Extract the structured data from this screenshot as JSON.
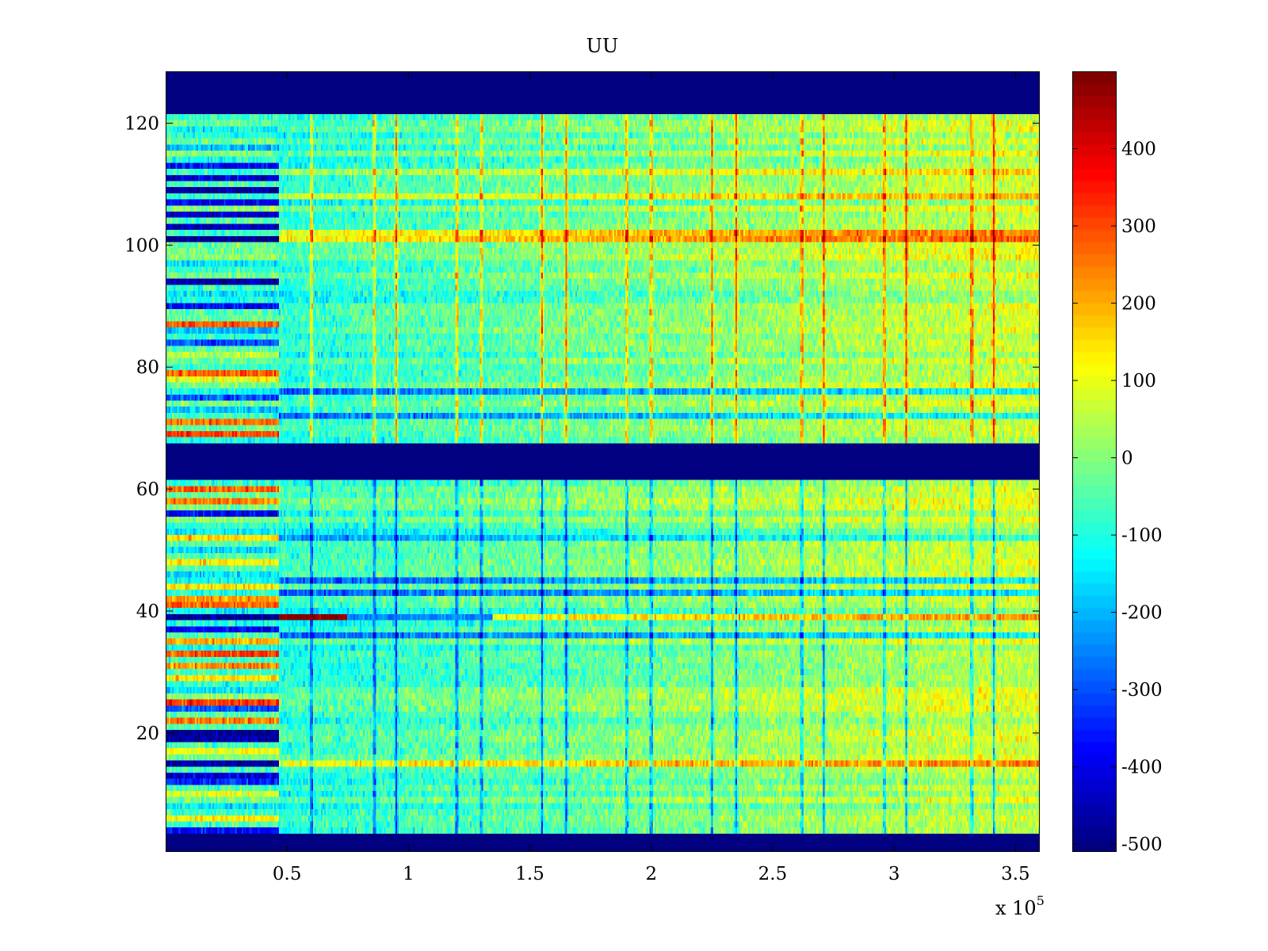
{
  "chart_data": {
    "type": "heatmap",
    "title": "UU",
    "xlabel": "",
    "ylabel": "",
    "x_multiplier_label": "x 10",
    "x_multiplier_exponent": "5",
    "xlim": [
      0,
      360000
    ],
    "ylim": [
      1,
      128
    ],
    "x_ticks": [
      50000,
      100000,
      150000,
      200000,
      250000,
      300000,
      350000
    ],
    "x_tick_labels": [
      "0.5",
      "1",
      "1.5",
      "2",
      "2.5",
      "3",
      "3.5"
    ],
    "y_ticks": [
      20,
      40,
      60,
      80,
      100,
      120
    ],
    "y_tick_labels": [
      "20",
      "40",
      "60",
      "80",
      "100",
      "120"
    ],
    "colormap": "jet",
    "clim": [
      -510,
      500
    ],
    "colorbar_ticks": [
      400,
      300,
      200,
      100,
      0,
      -100,
      -200,
      -300,
      -400,
      -500
    ],
    "colorbar_tick_labels": [
      "400",
      "300",
      "200",
      "100",
      "0",
      "-100",
      "-200",
      "-300",
      "-400",
      "-500"
    ],
    "masked_rows": [
      [
        1,
        3
      ],
      [
        62,
        67
      ],
      [
        122,
        128
      ]
    ],
    "masked_value": -510,
    "early_segment_end_x": 47000,
    "spike_columns_x": [
      60000,
      86000,
      95000,
      120000,
      130000,
      155000,
      165000,
      190000,
      200000,
      225000,
      235000,
      262000,
      271000,
      296000,
      305000,
      332000,
      341000
    ],
    "row_levels_early": [
      {
        "row": 4,
        "value": -380
      },
      {
        "row": 6,
        "value": 120
      },
      {
        "row": 8,
        "value": -150
      },
      {
        "row": 10,
        "value": 80
      },
      {
        "row": 12,
        "value": -350
      },
      {
        "row": 13,
        "value": -420
      },
      {
        "row": 15,
        "value": -470
      },
      {
        "row": 17,
        "value": 100
      },
      {
        "row": 19,
        "value": -470
      },
      {
        "row": 20,
        "value": -490
      },
      {
        "row": 22,
        "value": 250
      },
      {
        "row": 24,
        "value": -300
      },
      {
        "row": 25,
        "value": 320
      },
      {
        "row": 27,
        "value": -150
      },
      {
        "row": 29,
        "value": 150
      },
      {
        "row": 31,
        "value": 230
      },
      {
        "row": 33,
        "value": 300
      },
      {
        "row": 35,
        "value": 200
      },
      {
        "row": 37,
        "value": -380
      },
      {
        "row": 39,
        "value": -500
      },
      {
        "row": 41,
        "value": 270
      },
      {
        "row": 42,
        "value": 220
      },
      {
        "row": 44,
        "value": 130
      },
      {
        "row": 46,
        "value": -150
      },
      {
        "row": 48,
        "value": 130
      },
      {
        "row": 50,
        "value": -150
      },
      {
        "row": 52,
        "value": 150
      },
      {
        "row": 54,
        "value": -80
      },
      {
        "row": 56,
        "value": -380
      },
      {
        "row": 58,
        "value": 250
      },
      {
        "row": 60,
        "value": 270
      },
      {
        "row": 69,
        "value": 300
      },
      {
        "row": 71,
        "value": 250
      },
      {
        "row": 73,
        "value": -180
      },
      {
        "row": 75,
        "value": -300
      },
      {
        "row": 78,
        "value": 100
      },
      {
        "row": 79,
        "value": 280
      },
      {
        "row": 82,
        "value": 50
      },
      {
        "row": 84,
        "value": -300
      },
      {
        "row": 86,
        "value": -200
      },
      {
        "row": 87,
        "value": 280
      },
      {
        "row": 90,
        "value": -380
      },
      {
        "row": 92,
        "value": -150
      },
      {
        "row": 94,
        "value": -470
      },
      {
        "row": 97,
        "value": -150
      },
      {
        "row": 101,
        "value": -500
      },
      {
        "row": 103,
        "value": -450
      },
      {
        "row": 105,
        "value": -430
      },
      {
        "row": 107,
        "value": -400
      },
      {
        "row": 109,
        "value": -470
      },
      {
        "row": 111,
        "value": -420
      },
      {
        "row": 113,
        "value": -380
      },
      {
        "row": 116,
        "value": -200
      },
      {
        "row": 119,
        "value": -130
      }
    ],
    "row_levels_late": [
      {
        "row": 15,
        "value": 150
      },
      {
        "row": 20,
        "value": 60
      },
      {
        "row": 36,
        "value": -200
      },
      {
        "row": 39,
        "value": 120
      },
      {
        "row": 43,
        "value": -180
      },
      {
        "row": 45,
        "value": -150
      },
      {
        "row": 52,
        "value": -130
      },
      {
        "row": 72,
        "value": -170
      },
      {
        "row": 76,
        "value": -160
      },
      {
        "row": 101,
        "value": 220
      },
      {
        "row": 102,
        "value": 200
      },
      {
        "row": 108,
        "value": 150
      },
      {
        "row": 112,
        "value": 120
      }
    ],
    "row_39_detail": [
      {
        "x_from": 47000,
        "x_to": 75000,
        "value": 480
      },
      {
        "x_from": 75000,
        "x_to": 135000,
        "value": -250
      }
    ]
  }
}
